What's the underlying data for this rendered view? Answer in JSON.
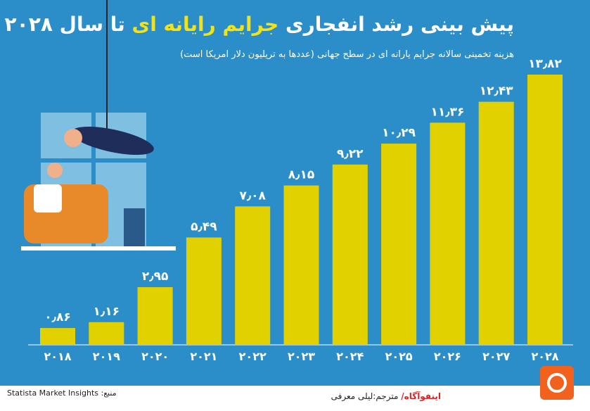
{
  "chart_data": {
    "type": "bar",
    "title": [
      "پیش بینی رشد انفجاری",
      "جرایم رایانه ای",
      "تا سال ۲۰۲۸"
    ],
    "subtitle": "هزینه تخمینی سالانه جرایم یارانه ای در سطح جهانی (عددها به تریلیون دلار امریکا است)",
    "categories": [
      "۲۰۱۸",
      "۲۰۱۹",
      "۲۰۲۰",
      "۲۰۲۱",
      "۲۰۲۲",
      "۲۰۲۳",
      "۲۰۲۴",
      "۲۰۲۵",
      "۲۰۲۶",
      "۲۰۲۷",
      "۲۰۲۸"
    ],
    "values": [
      0.86,
      1.16,
      2.95,
      5.49,
      7.08,
      8.15,
      9.22,
      10.29,
      11.36,
      12.43,
      13.82
    ],
    "value_labels": [
      "۰٫۸۶",
      "۱٫۱۶",
      "۲٫۹۵",
      "۵٫۴۹",
      "۷٫۰۸",
      "۸٫۱۵",
      "۹٫۲۲",
      "۱۰٫۲۹",
      "۱۱٫۳۶",
      "۱۲٫۴۳",
      "۱۳٫۸۲"
    ],
    "color": "#e2d100",
    "source": "منبع: Statista Market Insights",
    "credit_brand": "اینفوآگاه/",
    "credit_translator": "مترجم:لیلی معرفی"
  }
}
